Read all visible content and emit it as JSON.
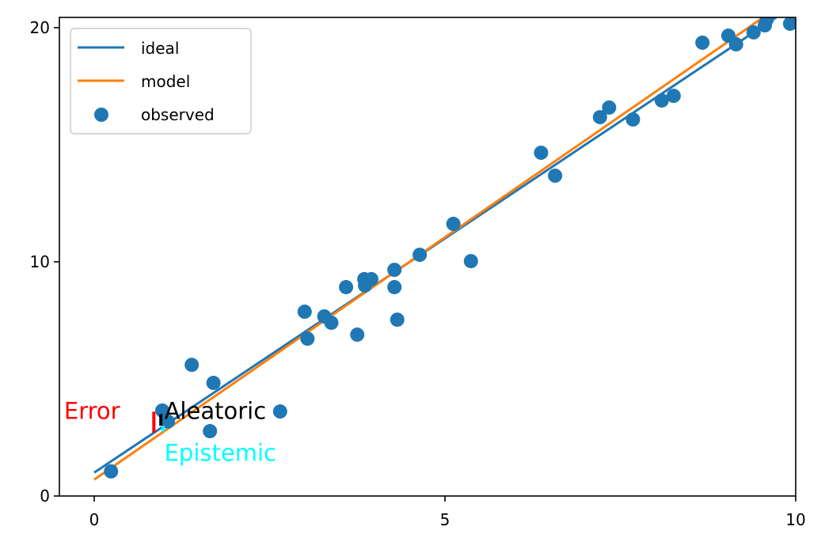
{
  "chart_data": {
    "type": "scatter",
    "title": "",
    "xlabel": "",
    "ylabel": "",
    "xlim": [
      -0.5,
      10.0
    ],
    "ylim": [
      0,
      20.45
    ],
    "grid": false,
    "legend_position": "upper left",
    "x_ticks": [
      0,
      5,
      10
    ],
    "x_tick_labels": [
      "0",
      "5",
      "10"
    ],
    "y_ticks": [
      0,
      10,
      20
    ],
    "y_tick_labels": [
      "0",
      "10",
      "20"
    ],
    "series": [
      {
        "name": "ideal",
        "kind": "line",
        "color": "#1f77b4",
        "x": [
          0,
          10
        ],
        "y": [
          1.0,
          21.0
        ],
        "slope": 2.0,
        "intercept": 1.0
      },
      {
        "name": "model",
        "kind": "line",
        "color": "#ff7f0e",
        "x": [
          0,
          10
        ],
        "y": [
          0.7,
          21.4
        ],
        "slope": 2.07,
        "intercept": 0.7
      },
      {
        "name": "observed",
        "kind": "scatter",
        "color": "#1f77b4",
        "x": [
          0.24,
          0.97,
          1.05,
          1.39,
          1.65,
          1.7,
          2.65,
          3.0,
          3.04,
          3.28,
          3.38,
          3.59,
          3.75,
          3.85,
          3.95,
          3.86,
          4.28,
          4.28,
          4.32,
          4.64,
          5.12,
          5.37,
          6.37,
          6.57,
          7.21,
          7.34,
          7.68,
          8.09,
          8.26,
          8.67,
          9.04,
          9.15,
          9.4,
          9.56,
          9.59,
          9.92
        ],
        "y": [
          1.05,
          3.65,
          3.18,
          5.6,
          2.77,
          4.83,
          3.61,
          7.87,
          6.72,
          7.67,
          7.4,
          8.92,
          6.89,
          9.26,
          9.26,
          8.99,
          9.66,
          8.92,
          7.53,
          10.3,
          11.62,
          10.03,
          14.66,
          13.68,
          16.18,
          16.59,
          16.08,
          16.89,
          17.09,
          19.36,
          19.66,
          19.29,
          19.8,
          20.1,
          20.37,
          20.17
        ]
      }
    ],
    "legend": [
      "ideal",
      "model",
      "observed"
    ],
    "annotations": [
      {
        "text": "Error",
        "color": "#ff0000",
        "x": -0.43,
        "y": 3.3
      },
      {
        "text": "Aleatoric",
        "color": "#000000",
        "x": 1.0,
        "y": 3.3
      },
      {
        "text": "Epistemic",
        "color": "#00ffff",
        "x": 1.0,
        "y": 1.5
      }
    ],
    "error_bars": [
      {
        "label": "error",
        "color": "#ff0000",
        "x": 0.85,
        "y0": 2.7,
        "y1": 3.6
      },
      {
        "label": "aleatoric",
        "color": "#000000",
        "x": 0.95,
        "y0": 3.0,
        "y1": 3.5
      },
      {
        "label": "epistemic",
        "color": "#00ffff",
        "x": 0.98,
        "y0": 2.75,
        "y1": 3.0
      }
    ]
  }
}
